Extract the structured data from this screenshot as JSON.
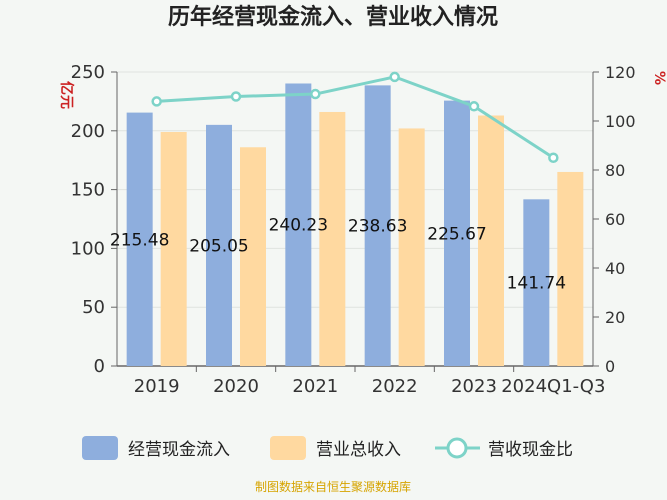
{
  "chart_data": {
    "type": "bar",
    "title": "历年经营现金流入、营业收入情况",
    "left_axis_unit": "亿元",
    "right_axis_unit": "%",
    "categories": [
      "2019",
      "2020",
      "2021",
      "2022",
      "2023",
      "2024Q1-Q3"
    ],
    "ylim_left": [
      0,
      250
    ],
    "yticks_left": [
      0,
      50,
      100,
      150,
      200,
      250
    ],
    "ylim_right": [
      0,
      120
    ],
    "yticks_right": [
      0,
      20,
      40,
      60,
      80,
      100,
      120
    ],
    "series": [
      {
        "name": "经营现金流入",
        "kind": "bar",
        "axis": "left",
        "color": "#8eaedd",
        "values": [
          215.48,
          205.05,
          240.23,
          238.63,
          225.67,
          141.74
        ]
      },
      {
        "name": "营业总收入",
        "kind": "bar",
        "axis": "left",
        "color": "#ffd9a0",
        "values": [
          199,
          186,
          216,
          202,
          213,
          165
        ]
      },
      {
        "name": "营收现金比",
        "kind": "line",
        "axis": "right",
        "color": "#7dd3c8",
        "values": [
          108,
          110,
          111,
          118,
          106,
          85
        ]
      }
    ],
    "data_labels": [
      "215.48",
      "205.05",
      "240.23",
      "238.63",
      "225.67",
      "141.74"
    ],
    "grid": true,
    "legend_position": "bottom"
  },
  "source_text": "制图数据来自恒生聚源数据库"
}
